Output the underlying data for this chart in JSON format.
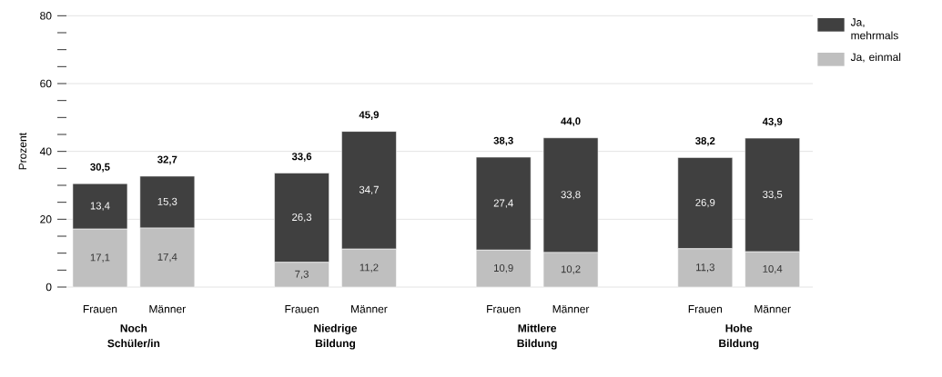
{
  "chart_data": {
    "type": "bar",
    "stacked": true,
    "ylabel": "Prozent",
    "categories": [
      "Frauen",
      "Männer",
      "Frauen",
      "Männer",
      "Frauen",
      "Männer",
      "Frauen",
      "Männer"
    ],
    "annotations": [
      "Noch Schüler/in",
      "Niedrige Bildung",
      "Mittlere Bildung",
      "Hohe Bildung"
    ],
    "series": [
      {
        "name": "Ja, einmal",
        "color": "#bfbfbf",
        "values": [
          17.1,
          17.4,
          7.3,
          11.2,
          10.9,
          10.2,
          11.3,
          10.4
        ],
        "value_labels": [
          "17,1",
          "17,4",
          "7,3",
          "11,2",
          "10,9",
          "10,2",
          "11,3",
          "10,4"
        ]
      },
      {
        "name": "Ja, mehrmals",
        "color": "#404040",
        "values": [
          13.4,
          15.3,
          26.3,
          34.7,
          27.4,
          33.8,
          26.9,
          33.5
        ],
        "value_labels": [
          "13,4",
          "15,3",
          "26,3",
          "34,7",
          "27,4",
          "33,8",
          "26,9",
          "33,5"
        ]
      }
    ],
    "totals": [
      "30,5",
      "32,7",
      "33,6",
      "45,9",
      "38,3",
      "44,0",
      "38,2",
      "43,9"
    ],
    "ylim": [
      0,
      80
    ],
    "yticks": [
      0,
      {
        "value": 5,
        "label": null
      },
      {
        "value": 10,
        "label": null
      },
      {
        "value": 15,
        "label": null
      },
      20,
      {
        "value": 25,
        "label": null
      },
      {
        "value": 30,
        "label": null
      },
      {
        "value": 35,
        "label": null
      },
      40,
      {
        "value": 45,
        "label": null
      },
      {
        "value": 50,
        "label": null
      },
      {
        "value": 55,
        "label": null
      },
      60,
      {
        "value": 65,
        "label": null
      },
      {
        "value": 70,
        "label": null
      },
      {
        "value": 75,
        "label": null
      },
      80
    ],
    "grid": "y",
    "legend": "top right"
  }
}
